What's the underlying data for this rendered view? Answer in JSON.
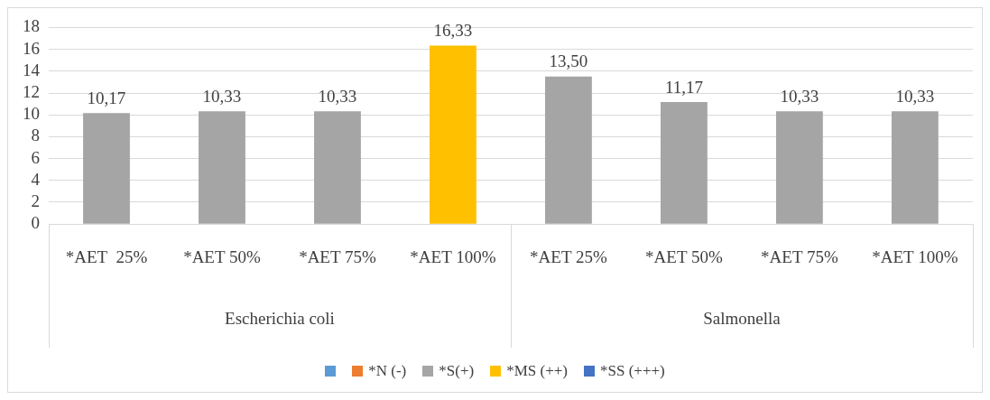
{
  "chart_data": {
    "type": "bar",
    "categories": [
      "*AET  25%",
      "*AET 50%",
      "*AET 75%",
      "*AET 100%",
      "*AET 25%",
      "*AET 50%",
      "*AET 75%",
      "*AET 100%"
    ],
    "series": [
      {
        "color": "#5b9bd5",
        "values": [
          null,
          null,
          null,
          null,
          null,
          null,
          null,
          null
        ]
      },
      {
        "name": "*N (-)",
        "color": "#ed7d31",
        "values": [
          null,
          null,
          null,
          null,
          null,
          null,
          null,
          null
        ]
      },
      {
        "name": "*S(+)",
        "color": "#a5a5a5",
        "values": [
          10.17,
          10.33,
          10.33,
          null,
          13.5,
          11.17,
          10.33,
          10.33
        ],
        "value_labels": [
          "10,17",
          "10,33",
          "10,33",
          null,
          "13,50",
          "11,17",
          "10,33",
          "10,33"
        ]
      },
      {
        "name": "*MS (++)",
        "color": "#ffc000",
        "values": [
          null,
          null,
          null,
          16.33,
          null,
          null,
          null,
          null
        ],
        "value_labels": [
          null,
          null,
          null,
          "16,33",
          null,
          null,
          null,
          null
        ]
      },
      {
        "name": "*SS (+++)",
        "color": "#4472c4",
        "values": [
          null,
          null,
          null,
          null,
          null,
          null,
          null,
          null
        ]
      }
    ],
    "annotations": [
      "Escherichia coli",
      "Salmonella"
    ],
    "ylim": [
      0,
      18
    ],
    "yticks": [
      0,
      2,
      4,
      6,
      8,
      10,
      12,
      14,
      16,
      18
    ],
    "grid": "y",
    "legend": "bottom"
  }
}
